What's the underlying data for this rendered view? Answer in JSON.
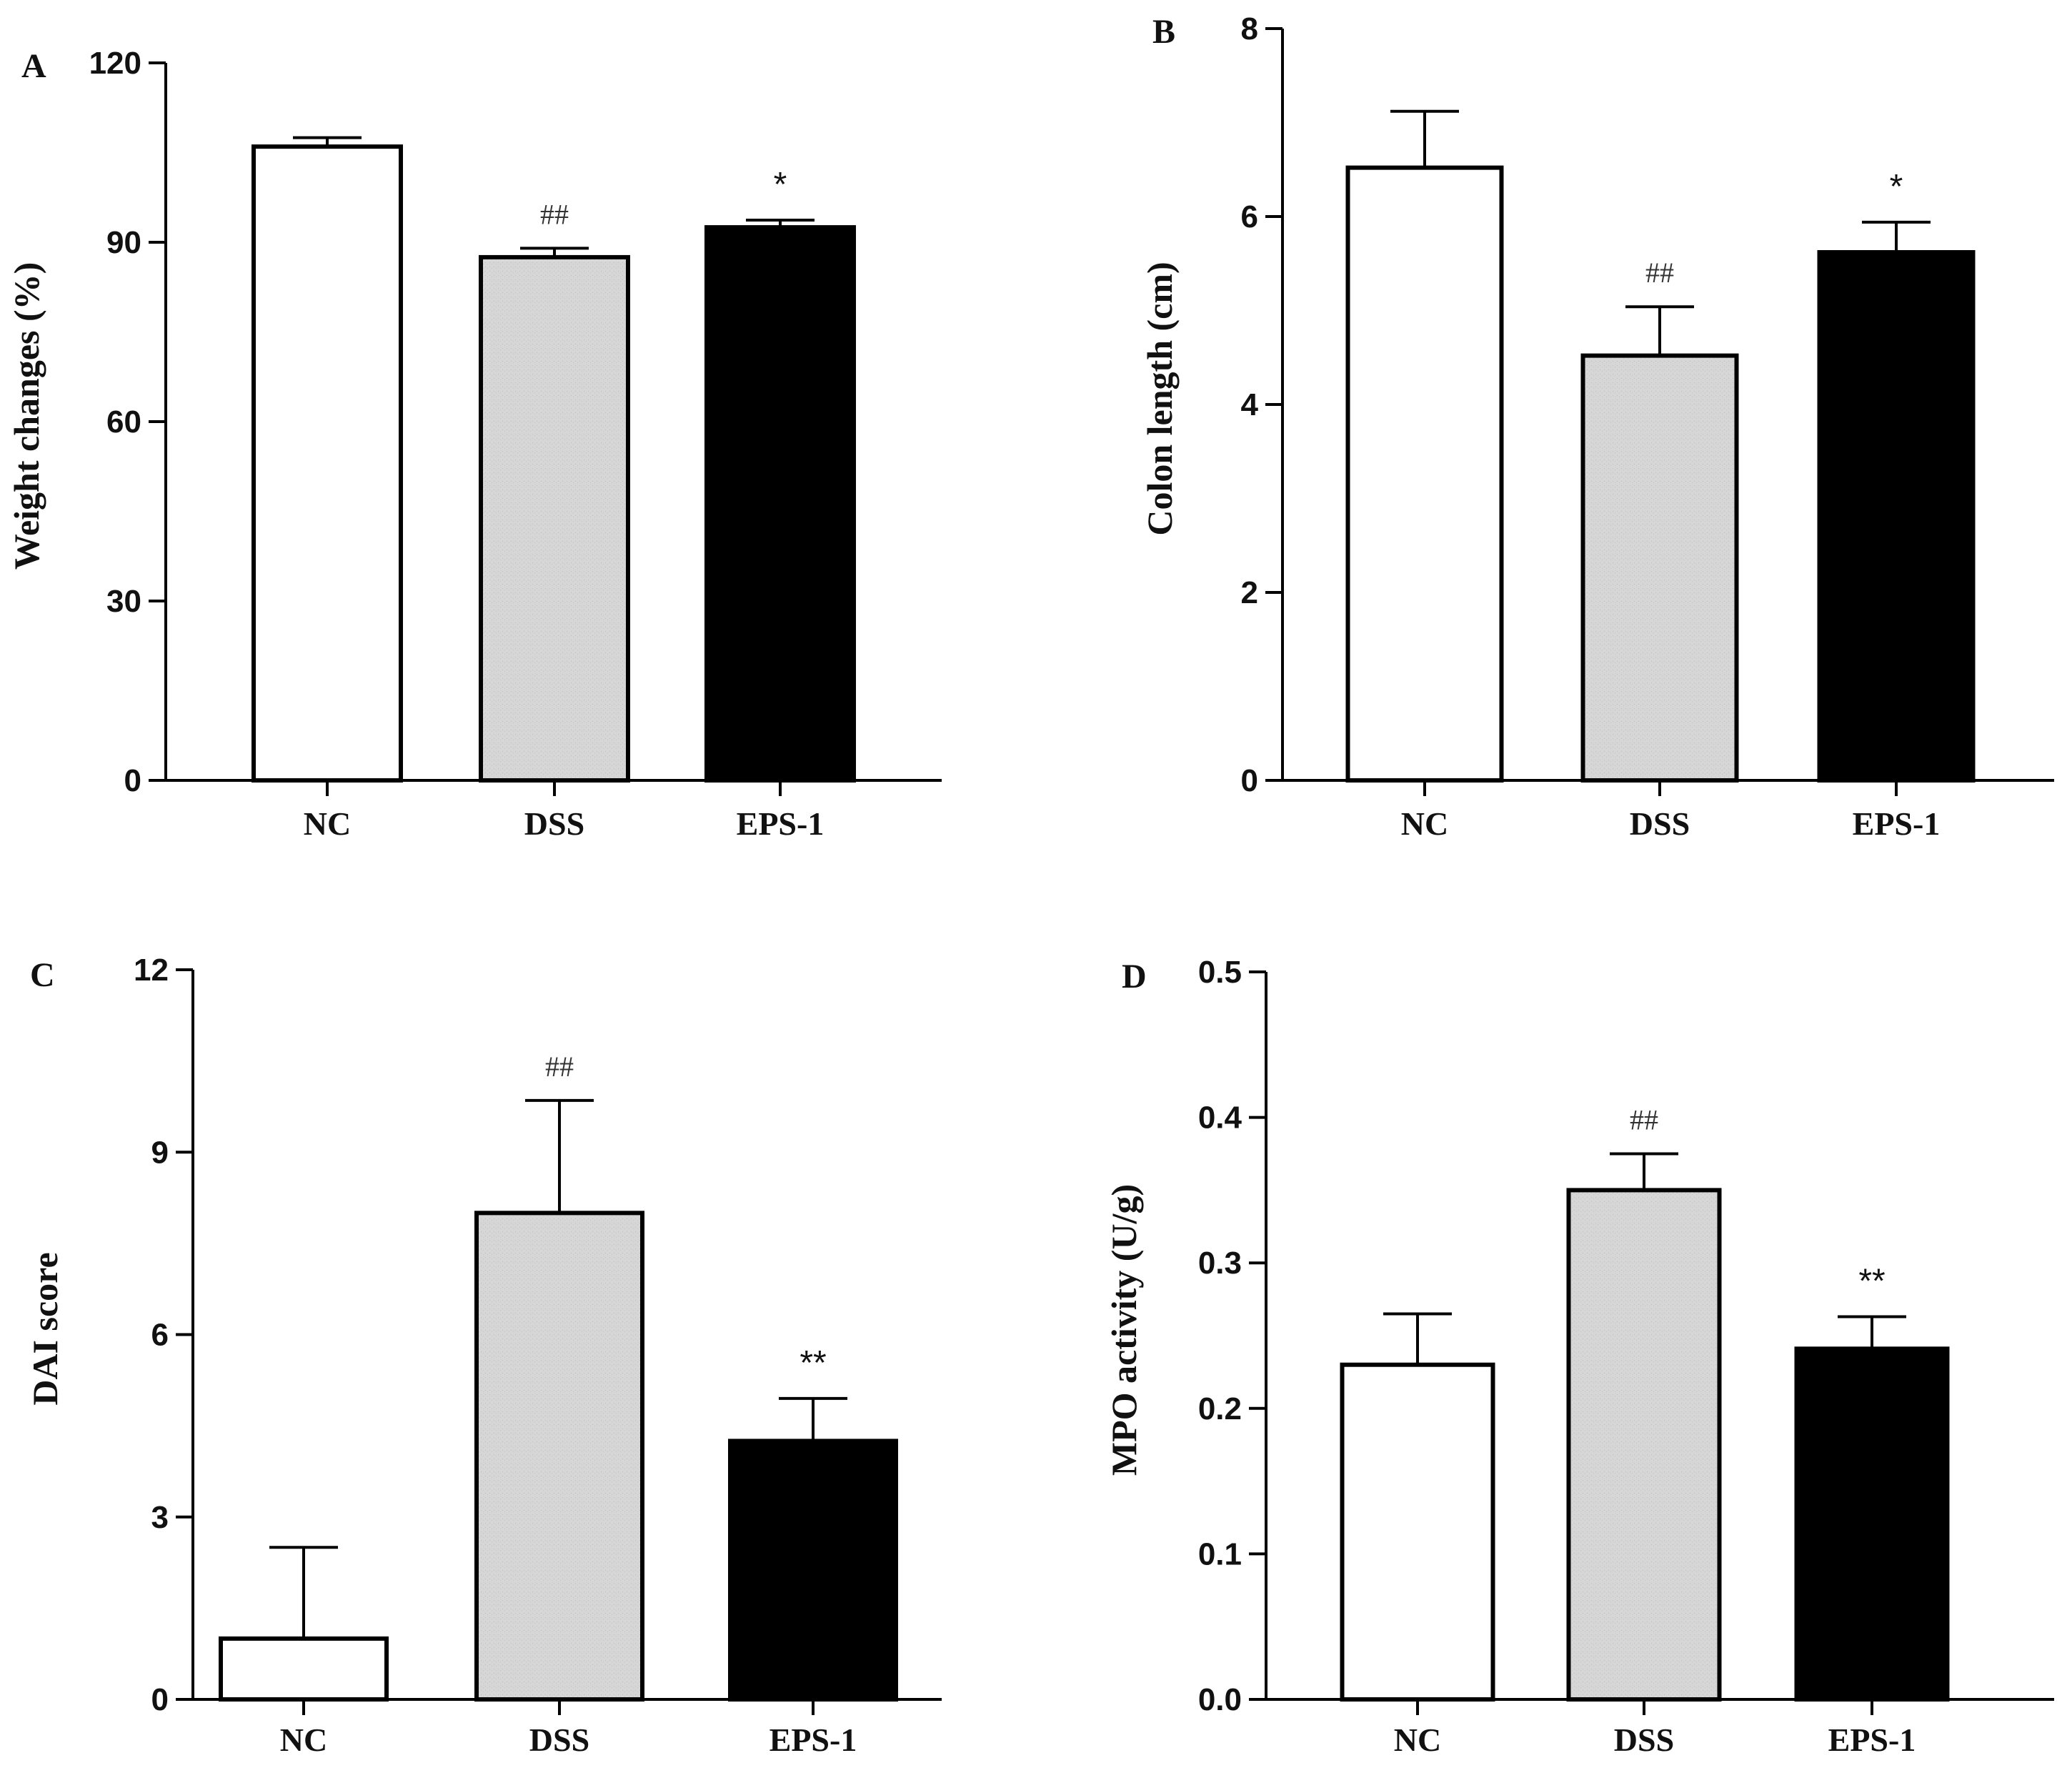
{
  "chart_data": [
    {
      "panel": "A",
      "type": "bar",
      "categories": [
        "NC",
        "DSS",
        "EPS-1"
      ],
      "values": [
        106,
        87.5,
        92.5
      ],
      "errors": [
        1.5,
        1.5,
        1.2
      ],
      "annotations": [
        "",
        "##",
        "*"
      ],
      "fills": [
        "#ffffff",
        "#d4d4d4",
        "#000000"
      ],
      "ylabel": "Weight changes (%)",
      "ylim": [
        0,
        120
      ],
      "yticks": [
        0,
        30,
        60,
        90,
        120
      ],
      "ytick_labels": [
        "0",
        "30",
        "60",
        "90",
        "120"
      ]
    },
    {
      "panel": "B",
      "type": "bar",
      "categories": [
        "NC",
        "DSS",
        "EPS-1"
      ],
      "values": [
        6.52,
        4.52,
        5.62
      ],
      "errors": [
        0.6,
        0.52,
        0.32
      ],
      "annotations": [
        "",
        "##",
        "*"
      ],
      "fills": [
        "#ffffff",
        "#d4d4d4",
        "#000000"
      ],
      "ylabel": "Colon length (cm)",
      "ylim": [
        0,
        8
      ],
      "yticks": [
        0,
        2,
        4,
        6,
        8
      ],
      "ytick_labels": [
        "0",
        "2",
        "4",
        "6",
        "8"
      ]
    },
    {
      "panel": "C",
      "type": "bar",
      "categories": [
        "NC",
        "DSS",
        "EPS-1"
      ],
      "values": [
        1.0,
        8.0,
        4.25
      ],
      "errors": [
        1.5,
        1.85,
        0.7
      ],
      "annotations": [
        "",
        "##",
        "**"
      ],
      "fills": [
        "#ffffff",
        "#d4d4d4",
        "#000000"
      ],
      "ylabel": "DAI score",
      "ylim": [
        0,
        12
      ],
      "yticks": [
        0,
        3,
        6,
        9,
        12
      ],
      "ytick_labels": [
        "0",
        "3",
        "6",
        "9",
        "12"
      ]
    },
    {
      "panel": "D",
      "type": "bar",
      "categories": [
        "NC",
        "DSS",
        "EPS-1"
      ],
      "values": [
        0.23,
        0.35,
        0.241
      ],
      "errors": [
        0.035,
        0.025,
        0.022
      ],
      "annotations": [
        "",
        "##",
        "**"
      ],
      "fills": [
        "#ffffff",
        "#d4d4d4",
        "#000000"
      ],
      "ylabel": "MPO activity (U/g)",
      "ylim": [
        0,
        0.5
      ],
      "yticks": [
        0,
        0.1,
        0.2,
        0.3,
        0.4,
        0.5
      ],
      "ytick_labels": [
        "0.0",
        "0.1",
        "0.2",
        "0.3",
        "0.4",
        "0.5"
      ]
    }
  ]
}
